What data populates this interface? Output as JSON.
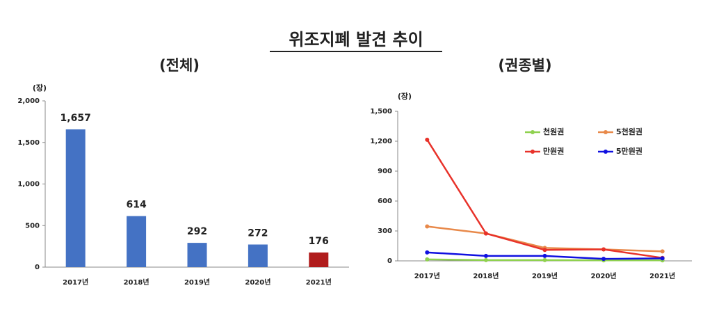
{
  "title": "위조지폐 발견 추이",
  "chart_data": [
    {
      "type": "bar",
      "title": "(전체)",
      "y_label": "(장)",
      "categories": [
        "2017년",
        "2018년",
        "2019년",
        "2020년",
        "2021년"
      ],
      "values": [
        1657,
        614,
        292,
        272,
        176
      ],
      "value_labels": [
        "1,657",
        "614",
        "292",
        "272",
        "176"
      ],
      "colors": [
        "#4472c4",
        "#4472c4",
        "#4472c4",
        "#4472c4",
        "#b01c1c"
      ],
      "label_colors": [
        "#404040",
        "#404040",
        "#404040",
        "#404040",
        "#c00000"
      ],
      "ylim": [
        0,
        2000
      ],
      "yticks": [
        0,
        500,
        {
          "value": 1000,
          "label": "1,000"
        },
        {
          "value": 1500,
          "label": "1,500"
        },
        {
          "value": 2000,
          "label": "2,000"
        }
      ],
      "grid": false
    },
    {
      "type": "line",
      "title": "(권종별)",
      "y_label": "(장)",
      "categories": [
        "2017년",
        "2018년",
        "2019년",
        "2020년",
        "2021년"
      ],
      "series": [
        {
          "name": "천원권",
          "color": "#8fd14f",
          "values": [
            15,
            8,
            8,
            5,
            5
          ]
        },
        {
          "name": "5천원권",
          "color": "#e8894a",
          "values": [
            345,
            275,
            130,
            115,
            95
          ]
        },
        {
          "name": "만원권",
          "color": "#e8322a",
          "values": [
            1215,
            275,
            110,
            115,
            30
          ]
        },
        {
          "name": "5만원권",
          "color": "#1010e0",
          "values": [
            85,
            50,
            50,
            20,
            25
          ]
        }
      ],
      "ylim": [
        0,
        1500
      ],
      "yticks": [
        0,
        300,
        600,
        900,
        {
          "value": 1200,
          "label": "1,200"
        },
        {
          "value": 1500,
          "label": "1,500"
        }
      ],
      "grid": false,
      "legend": "top-right"
    }
  ]
}
